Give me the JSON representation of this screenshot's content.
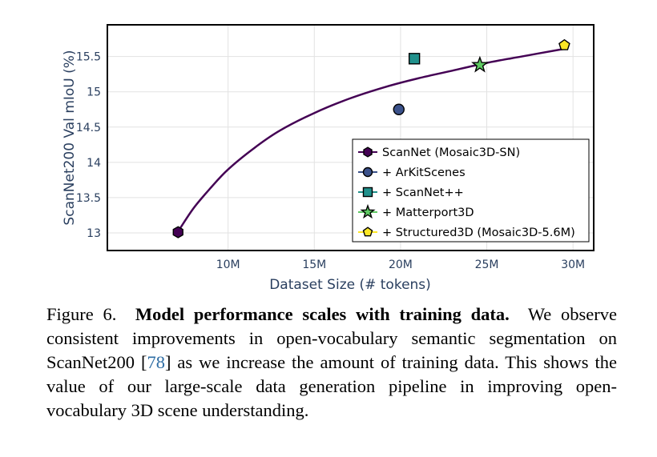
{
  "chart_data": {
    "type": "line",
    "xlabel": "Dataset Size (# tokens)",
    "ylabel": "ScanNet200 Val mIoU (%)",
    "xlim": [
      3000000,
      31200000
    ],
    "ylim": [
      12.75,
      15.95
    ],
    "xticks": [
      10000000,
      15000000,
      20000000,
      25000000,
      30000000
    ],
    "xtick_labels": [
      "10M",
      "15M",
      "20M",
      "25M",
      "30M"
    ],
    "yticks": [
      13,
      13.5,
      14,
      14.5,
      15,
      15.5
    ],
    "ytick_labels": [
      "13",
      "13.5",
      "14",
      "14.5",
      "15",
      "15.5"
    ],
    "grid": true,
    "legend_position": "bottom-right",
    "trend_line": {
      "color": "#440154",
      "x": [
        7100000,
        8000000,
        9000000,
        10000000,
        11500000,
        13000000,
        15000000,
        17000000,
        19000000,
        21000000,
        23000000,
        25000000,
        27000000,
        29500000
      ],
      "y": [
        13.02,
        13.35,
        13.64,
        13.9,
        14.2,
        14.45,
        14.7,
        14.9,
        15.06,
        15.19,
        15.3,
        15.41,
        15.5,
        15.61
      ]
    },
    "series": [
      {
        "name": "ScanNet (Mosaic3D-SN)",
        "x": [
          7100000
        ],
        "y": [
          13.01
        ],
        "marker": "hexagon",
        "color": "#440154"
      },
      {
        "name": "+ ArKitScenes",
        "x": [
          19900000
        ],
        "y": [
          14.75
        ],
        "marker": "circle",
        "color": "#3b528b"
      },
      {
        "name": "+ ScanNet++",
        "x": [
          20800000
        ],
        "y": [
          15.47
        ],
        "marker": "square",
        "color": "#21918c"
      },
      {
        "name": "+ Matterport3D",
        "x": [
          24600000
        ],
        "y": [
          15.38
        ],
        "marker": "star",
        "color": "#5ec962"
      },
      {
        "name": "+ Structured3D (Mosaic3D-5.6M)",
        "x": [
          29500000
        ],
        "y": [
          15.66
        ],
        "marker": "pentagon",
        "color": "#fde725"
      }
    ]
  },
  "caption": {
    "figure_label": "Figure 6.",
    "bold_title": "Model performance scales with training data.",
    "text_before_ref": "We observe consistent improvements in open-vocabulary semantic segmentation on ScanNet200 [",
    "ref": "78",
    "text_after_ref": "] as we increase the amount of training data. This shows the value of our large-scale data generation pipeline in improving open-vocabulary 3D scene understanding."
  }
}
